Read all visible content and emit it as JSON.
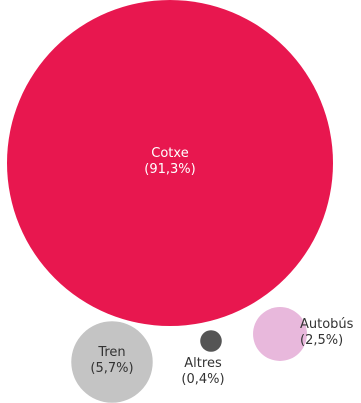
{
  "chart_data": {
    "type": "bubble",
    "title": "",
    "legend": "none",
    "items": [
      {
        "name": "Cotxe",
        "value_label": "(91,3%)",
        "value": 91.3,
        "color": "#e8174f",
        "label_color": "#ffffff",
        "label_position": "inside"
      },
      {
        "name": "Tren",
        "value_label": "(5,7%)",
        "value": 5.7,
        "color": "#c4c4c4",
        "label_color": "#333333",
        "label_position": "inside"
      },
      {
        "name": "Altres",
        "value_label": "(0,4%)",
        "value": 0.4,
        "color": "#555555",
        "label_color": "#333333",
        "label_position": "below"
      },
      {
        "name": "Autobús",
        "value_label": "(2,5%)",
        "value": 2.5,
        "color": "#e8b8dc",
        "label_color": "#333333",
        "label_position": "right"
      }
    ]
  }
}
